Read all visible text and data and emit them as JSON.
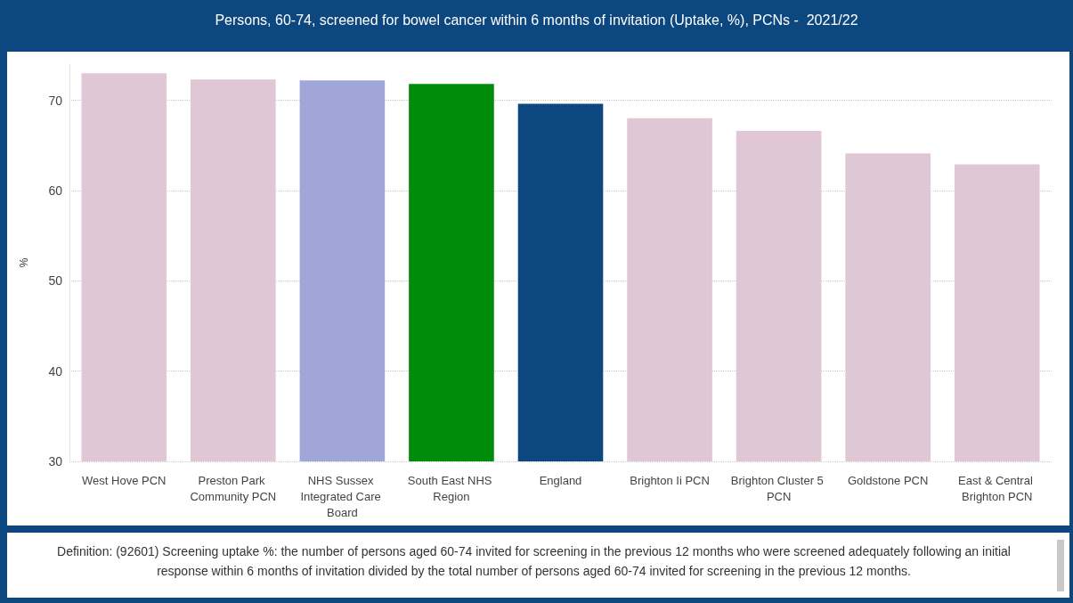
{
  "chart_data": {
    "type": "bar",
    "title": "Persons, 60-74, screened for bowel cancer within 6 months of invitation (Uptake, %), PCNs -  2021/22",
    "ylabel": "%",
    "categories": [
      "West Hove PCN",
      "Preston Park Community PCN",
      "NHS Sussex Integrated Care Board",
      "South East NHS Region",
      "England",
      "Brighton Ii PCN",
      "Brighton Cluster 5 PCN",
      "Goldstone PCN",
      "East & Central Brighton PCN"
    ],
    "values": [
      73.0,
      72.3,
      72.2,
      71.8,
      69.6,
      68.0,
      66.6,
      64.1,
      62.9
    ],
    "colors": [
      "#dfc7d5",
      "#dfc7d5",
      "#a1a6d8",
      "#008c0b",
      "#0c477f",
      "#dfc7d5",
      "#dfc7d5",
      "#dfc7d5",
      "#dfc7d5"
    ],
    "ylim": [
      30,
      74
    ],
    "yticks": [
      30,
      40,
      50,
      60,
      70
    ],
    "grid": "y",
    "annotations": [
      "Definition: (92601) Screening uptake %: the number of persons aged 60-74 invited for screening in the previous 12 months who were screened adequately following an initial response within 6 months of invitation divided by the total number of persons aged 60-74 invited for screening in the previous 12 months."
    ]
  }
}
